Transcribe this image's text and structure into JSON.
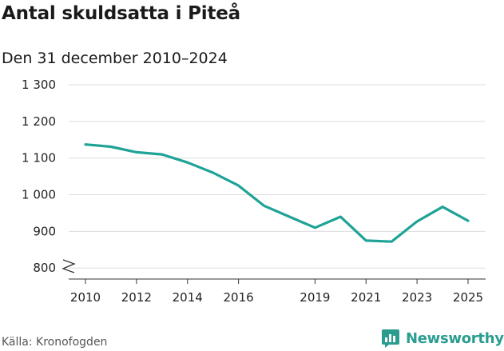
{
  "chart_data": {
    "type": "line",
    "title": "Antal skuldsatta i Piteå",
    "subtitle": "Den 31 december 2010–2024",
    "xlabel": "",
    "ylabel": "",
    "x": [
      2010,
      2011,
      2012,
      2013,
      2014,
      2015,
      2016,
      2017,
      2018,
      2019,
      2020,
      2021,
      2022,
      2023,
      2024,
      2025
    ],
    "series": [
      {
        "name": "Antal skuldsatta",
        "color": "#1fa396",
        "values": [
          1137,
          1131,
          1116,
          1110,
          1088,
          1060,
          1025,
          970,
          940,
          910,
          940,
          875,
          872,
          927,
          967,
          929
        ]
      }
    ],
    "ylim": [
      770,
      1300
    ],
    "y_ticks": [
      {
        "value": 800,
        "label": "800"
      },
      {
        "value": 900,
        "label": "900"
      },
      {
        "value": 1000,
        "label": "1 000"
      },
      {
        "value": 1100,
        "label": "1 100"
      },
      {
        "value": 1200,
        "label": "1 200"
      },
      {
        "value": 1300,
        "label": "1 300"
      }
    ],
    "x_ticks": [
      2010,
      2012,
      2014,
      2016,
      2019,
      2021,
      2023,
      2025
    ],
    "axis_break": true,
    "grid": true
  },
  "footer": {
    "source": "Källa: Kronofogden",
    "brand": "Newsworthy"
  },
  "colors": {
    "line": "#1fa396",
    "grid": "#dcdcdc",
    "axis": "#333333",
    "brand": "#2a9d8f"
  },
  "icons": {
    "brand": "newsworthy-logo-icon",
    "axis_break": "axis-break-icon"
  }
}
